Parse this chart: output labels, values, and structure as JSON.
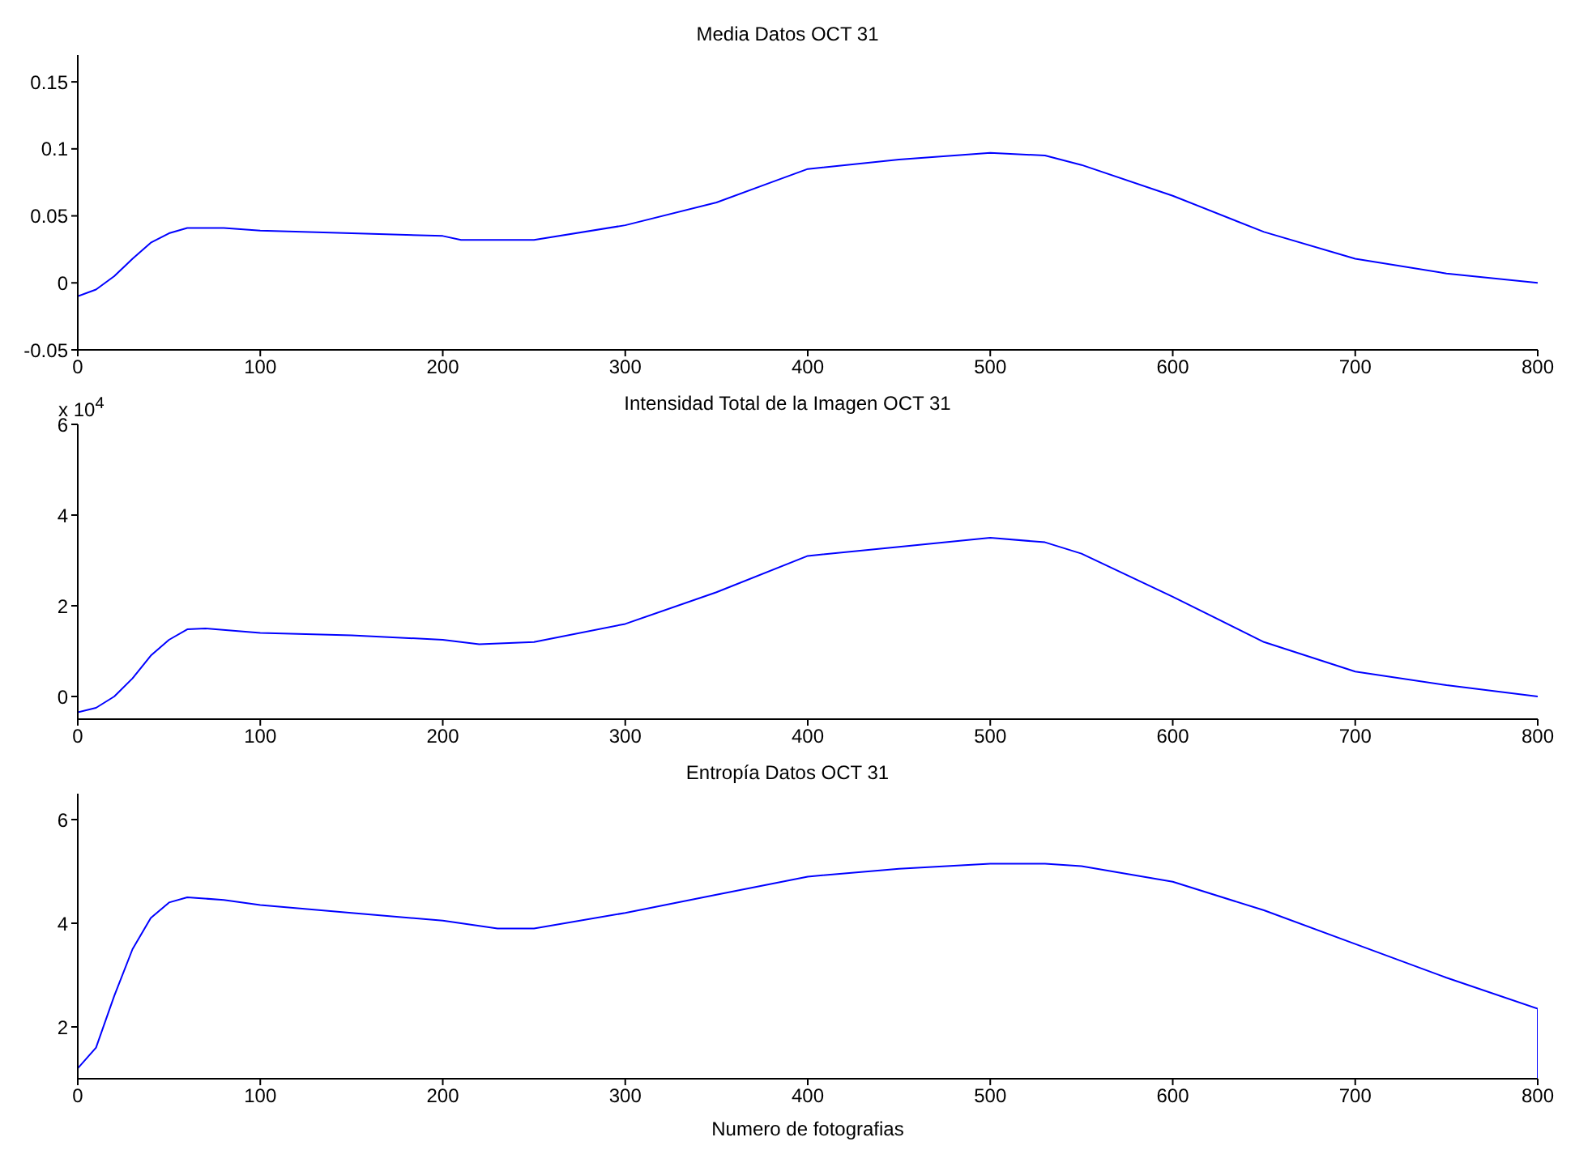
{
  "chart_data": [
    {
      "type": "line",
      "title": "Media Datos OCT 31",
      "x": [
        0,
        10,
        20,
        30,
        40,
        50,
        60,
        80,
        100,
        150,
        200,
        210,
        250,
        300,
        350,
        380,
        400,
        450,
        500,
        530,
        550,
        600,
        650,
        700,
        750,
        800
      ],
      "series": [
        {
          "color": "#0000ff",
          "values": [
            -0.01,
            -0.005,
            0.005,
            0.018,
            0.03,
            0.037,
            0.041,
            0.041,
            0.039,
            0.037,
            0.035,
            0.032,
            0.032,
            0.043,
            0.06,
            0.075,
            0.085,
            0.092,
            0.097,
            0.095,
            0.088,
            0.065,
            0.038,
            0.018,
            0.007,
            0.0
          ]
        }
      ],
      "xlim": [
        0,
        800
      ],
      "xticks": [
        0,
        100,
        200,
        300,
        400,
        500,
        600,
        700,
        800
      ],
      "ylim": [
        -0.05,
        0.17
      ],
      "yticks": [
        -0.05,
        0,
        0.05,
        0.1,
        0.15
      ],
      "grid": false,
      "legend": false
    },
    {
      "type": "line",
      "title": "Intensidad Total de la Imagen OCT 31",
      "annotations": [
        "x 10$^{4}$"
      ],
      "x": [
        0,
        10,
        20,
        30,
        40,
        50,
        60,
        70,
        100,
        150,
        200,
        220,
        250,
        300,
        350,
        400,
        450,
        500,
        530,
        550,
        600,
        650,
        700,
        750,
        800
      ],
      "series": [
        {
          "color": "#0000ff",
          "values": [
            -0.35,
            -0.25,
            0,
            0.4,
            0.9,
            1.25,
            1.48,
            1.5,
            1.4,
            1.35,
            1.25,
            1.15,
            1.2,
            1.6,
            2.3,
            3.1,
            3.3,
            3.5,
            3.4,
            3.15,
            2.2,
            1.2,
            0.55,
            0.25,
            0
          ]
        }
      ],
      "xlim": [
        0,
        800
      ],
      "xticks": [
        0,
        100,
        200,
        300,
        400,
        500,
        600,
        700,
        800
      ],
      "ylim": [
        -0.5,
        6
      ],
      "yticks": [
        0,
        2,
        4,
        6
      ],
      "grid": false,
      "legend": false
    },
    {
      "type": "line",
      "title": "Entropía Datos OCT 31",
      "xlabel": "Numero de fotografias",
      "x": [
        0,
        5,
        10,
        20,
        30,
        40,
        50,
        60,
        80,
        100,
        150,
        200,
        230,
        250,
        300,
        350,
        400,
        450,
        500,
        530,
        550,
        600,
        650,
        700,
        750,
        800,
        800
      ],
      "series": [
        {
          "color": "#0000ff",
          "values": [
            1.2,
            1.4,
            1.6,
            2.6,
            3.5,
            4.1,
            4.4,
            4.5,
            4.45,
            4.35,
            4.2,
            4.05,
            3.9,
            3.9,
            4.2,
            4.55,
            4.9,
            5.05,
            5.15,
            5.15,
            5.1,
            4.8,
            4.25,
            3.6,
            2.95,
            2.35,
            1.0
          ]
        }
      ],
      "xlim": [
        0,
        800
      ],
      "xticks": [
        0,
        100,
        200,
        300,
        400,
        500,
        600,
        700,
        800
      ],
      "ylim": [
        1,
        6.5
      ],
      "yticks": [
        2,
        4,
        6
      ],
      "grid": false,
      "legend": false
    }
  ]
}
